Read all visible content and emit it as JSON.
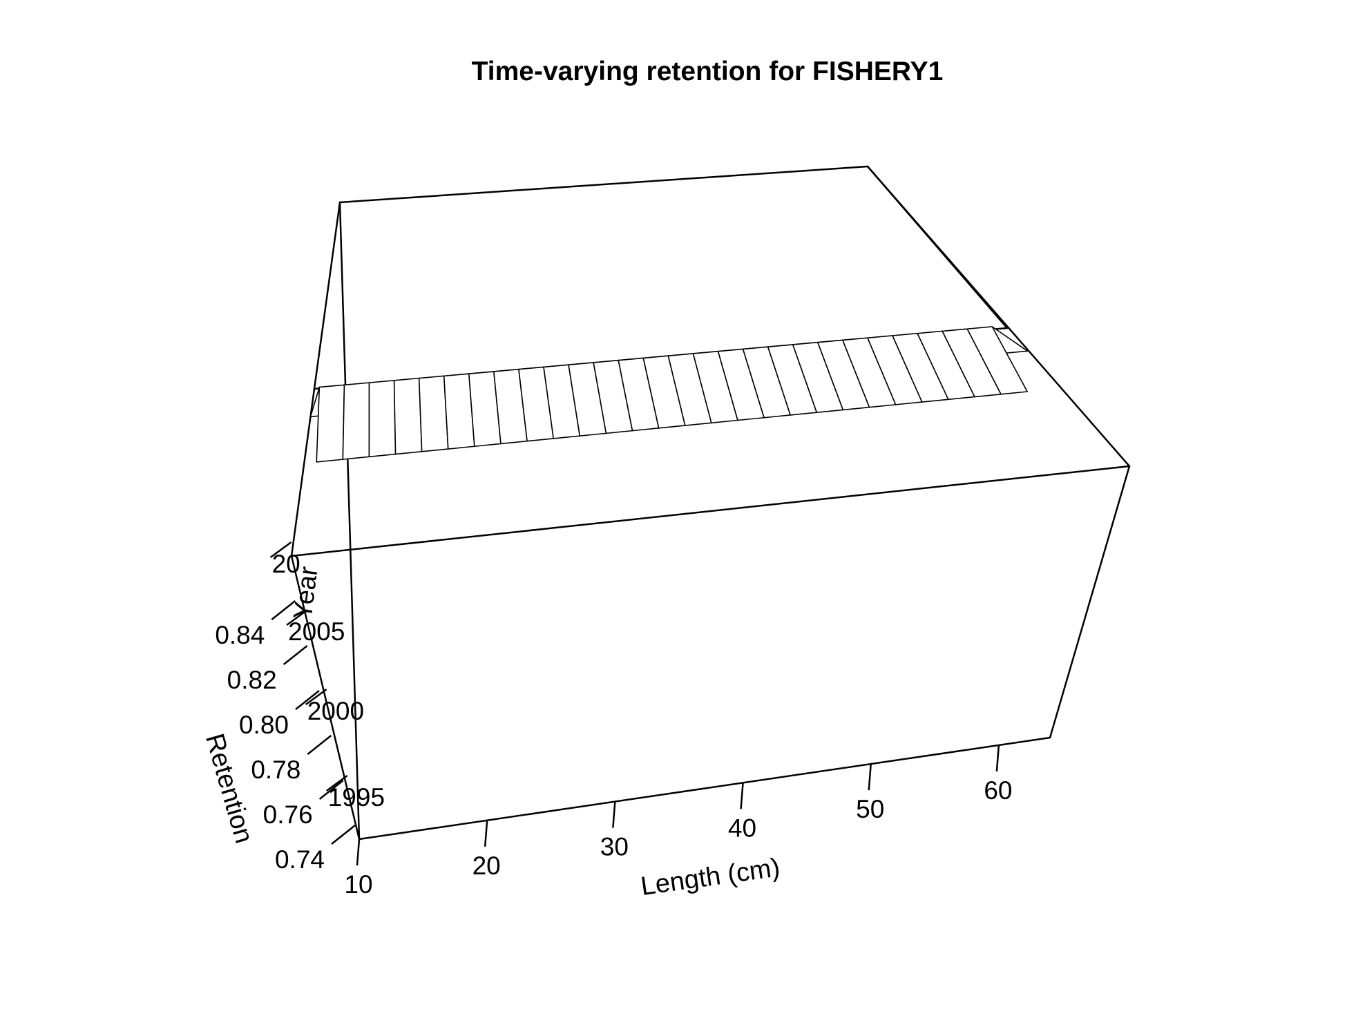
{
  "chart_data": {
    "type": "surface-3d",
    "title": "Time-varying retention for FISHERY1",
    "xlabel": "Length (cm)",
    "ylabel": "Year",
    "zlabel": "Retention",
    "x_ticks": [
      "10",
      "20",
      "30",
      "40",
      "50",
      "60"
    ],
    "y_ticks": [
      "1995",
      "2000",
      "2005",
      "20"
    ],
    "z_ticks": [
      "0.74",
      "0.76",
      "0.78",
      "0.80",
      "0.82",
      "0.84"
    ],
    "xlim": [
      10,
      64
    ],
    "ylim": [
      1990,
      2012
    ],
    "zlim": [
      0.74,
      0.86
    ],
    "series": [
      {
        "year_start": 2006,
        "year_end": 2012,
        "retention_start": 0.84,
        "retention_end": 0.84,
        "x": [
          10,
          12,
          14,
          16,
          18,
          20,
          22,
          24,
          26,
          28,
          30,
          32,
          34,
          36,
          38,
          40,
          42,
          44,
          46,
          48,
          50,
          52,
          54,
          56,
          58,
          60,
          62,
          64
        ]
      }
    ]
  }
}
